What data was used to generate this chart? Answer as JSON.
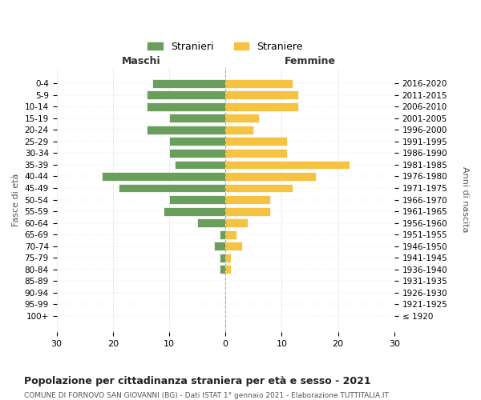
{
  "age_groups": [
    "100+",
    "95-99",
    "90-94",
    "85-89",
    "80-84",
    "75-79",
    "70-74",
    "65-69",
    "60-64",
    "55-59",
    "50-54",
    "45-49",
    "40-44",
    "35-39",
    "30-34",
    "25-29",
    "20-24",
    "15-19",
    "10-14",
    "5-9",
    "0-4"
  ],
  "birth_years": [
    "≤ 1920",
    "1921-1925",
    "1926-1930",
    "1931-1935",
    "1936-1940",
    "1941-1945",
    "1946-1950",
    "1951-1955",
    "1956-1960",
    "1961-1965",
    "1966-1970",
    "1971-1975",
    "1976-1980",
    "1981-1985",
    "1986-1990",
    "1991-1995",
    "1996-2000",
    "2001-2005",
    "2006-2010",
    "2011-2015",
    "2016-2020"
  ],
  "maschi": [
    0,
    0,
    0,
    0,
    1,
    1,
    2,
    1,
    5,
    11,
    10,
    19,
    22,
    9,
    10,
    10,
    14,
    10,
    14,
    14,
    13
  ],
  "femmine": [
    0,
    0,
    0,
    0,
    1,
    1,
    3,
    2,
    4,
    8,
    8,
    12,
    16,
    22,
    11,
    11,
    5,
    6,
    13,
    13,
    12
  ],
  "maschi_color": "#6a9e5c",
  "femmine_color": "#f5c242",
  "background_color": "#ffffff",
  "grid_color": "#cccccc",
  "title": "Popolazione per cittadinanza straniera per età e sesso - 2021",
  "subtitle": "COMUNE DI FORNOVO SAN GIOVANNI (BG) - Dati ISTAT 1° gennaio 2021 - Elaborazione TUTTITALIA.IT",
  "ylabel_left": "Fasce di età",
  "ylabel_right": "Anni di nascita",
  "xlabel_left": "Maschi",
  "xlabel_right": "Femmine",
  "legend_maschi": "Stranieri",
  "legend_femmine": "Straniere",
  "xlim": 30
}
